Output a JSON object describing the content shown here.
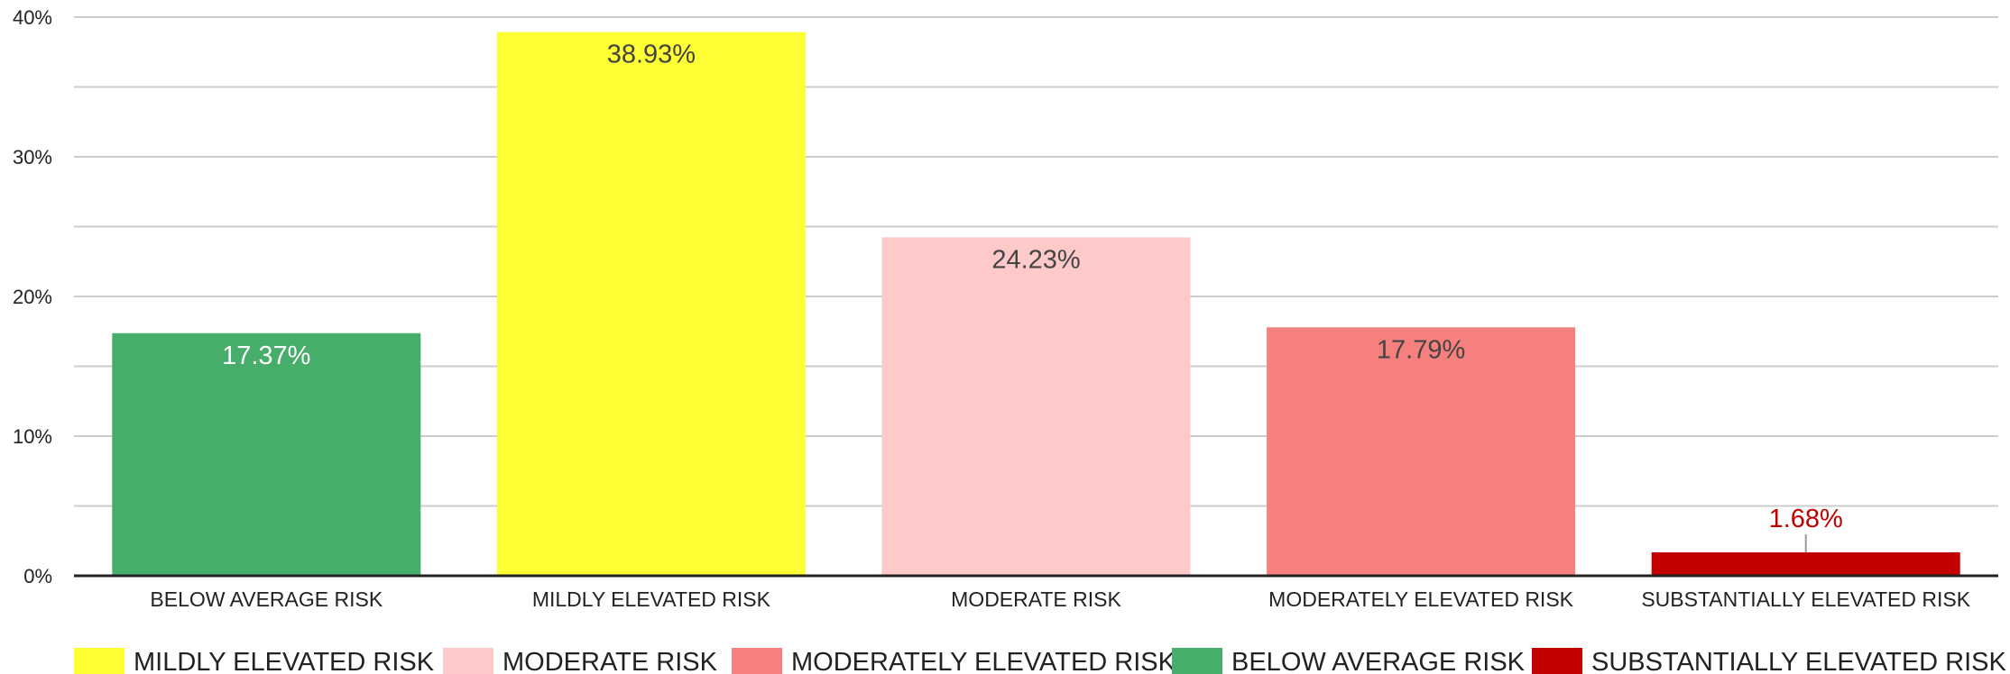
{
  "chart_data": {
    "type": "bar",
    "categories": [
      "BELOW AVERAGE RISK",
      "MILDLY ELEVATED RISK",
      "MODERATE RISK",
      "MODERATELY ELEVATED RISK",
      "SUBSTANTIALLY ELEVATED RISK"
    ],
    "values": [
      17.37,
      38.93,
      24.23,
      17.79,
      1.68
    ],
    "value_labels": [
      "17.37%",
      "38.93%",
      "24.23%",
      "17.79%",
      "1.68%"
    ],
    "bar_colors": [
      "#46ad6a",
      "#fefe34",
      "#fec9c9",
      "#f6807d",
      "#c20000"
    ],
    "value_label_colors": [
      "#ffffff",
      "#444444",
      "#444444",
      "#444444",
      "#c20000"
    ],
    "ylim": [
      0,
      40
    ],
    "y_ticks": [
      0,
      10,
      20,
      30,
      40
    ],
    "y_tick_labels": [
      "0%",
      "10%",
      "20%",
      "30%",
      "40%"
    ],
    "grid": true,
    "legend_position": "bottom",
    "legend": [
      {
        "label": "MILDLY ELEVATED RISK",
        "color": "#fefe34"
      },
      {
        "label": "MODERATE RISK",
        "color": "#fec9c9"
      },
      {
        "label": "MODERATELY ELEVATED RISK",
        "color": "#f6807d"
      },
      {
        "label": "BELOW AVERAGE RISK",
        "color": "#46ad6a"
      },
      {
        "label": "SUBSTANTIALLY ELEVATED RISK",
        "color": "#c20000"
      }
    ]
  }
}
